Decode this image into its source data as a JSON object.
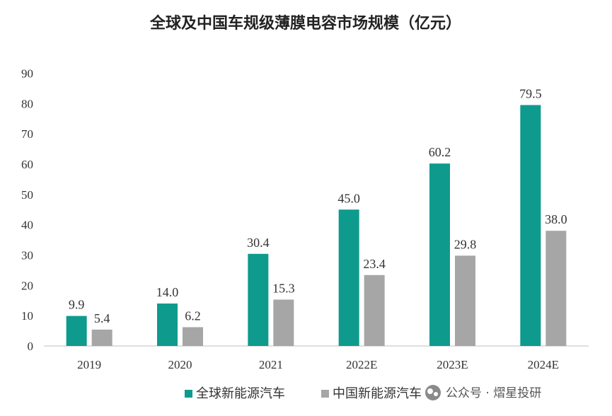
{
  "chart_data": {
    "type": "bar",
    "title": "全球及中国车规级薄膜电容市场规模（亿元）",
    "categories": [
      "2019",
      "2020",
      "2021",
      "2022E",
      "2023E",
      "2024E"
    ],
    "series": [
      {
        "name": "全球新能源汽车",
        "color": "#0f9a8e",
        "values": [
          9.9,
          14.0,
          30.4,
          45.0,
          60.2,
          79.5
        ],
        "labels": [
          "9.9",
          "14.0",
          "30.4",
          "45.0",
          "60.2",
          "79.5"
        ]
      },
      {
        "name": "中国新能源汽车",
        "color": "#a6a6a6",
        "values": [
          5.4,
          6.2,
          15.3,
          23.4,
          29.8,
          38.0
        ],
        "labels": [
          "5.4",
          "6.2",
          "15.3",
          "23.4",
          "29.8",
          "38.0"
        ]
      }
    ],
    "y_ticks": [
      0,
      10,
      20,
      30,
      40,
      50,
      60,
      70,
      80,
      90
    ],
    "ylim": [
      0,
      90
    ],
    "xlabel": "",
    "ylabel": "",
    "legend_position": "bottom-center",
    "grid": false
  },
  "watermark": {
    "text": "公众号 · 熠星投研"
  }
}
